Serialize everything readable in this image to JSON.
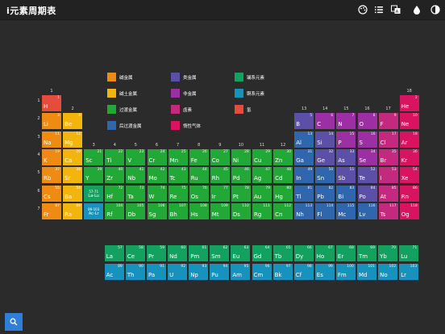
{
  "app": {
    "title": "i元素周期表"
  },
  "toolbar": {
    "icons": [
      "palette-icon",
      "list-icon",
      "translate-icon",
      "drop-icon",
      "contrast-icon"
    ]
  },
  "colors": {
    "alkali": "#ef8b13",
    "alkaline": "#f3b40d",
    "transition": "#22a836",
    "post": "#2f66ad",
    "metalloid": "#5b4fa8",
    "nonmetal": "#9b2fa3",
    "halogen": "#c2297f",
    "noble": "#d81460",
    "lanthanide": "#12a15f",
    "actinide": "#1692bc",
    "hydrogen": "#e74b3c"
  },
  "legend": [
    {
      "label": "碱金属",
      "cat": "alkali"
    },
    {
      "label": "碱土金属",
      "cat": "alkaline"
    },
    {
      "label": "过渡金属",
      "cat": "transition"
    },
    {
      "label": "后过渡金属",
      "cat": "post"
    },
    {
      "label": "类金属",
      "cat": "metalloid"
    },
    {
      "label": "非金属",
      "cat": "nonmetal"
    },
    {
      "label": "卤素",
      "cat": "halogen"
    },
    {
      "label": "惰性气体",
      "cat": "noble"
    },
    {
      "label": "镧系元素",
      "cat": "lanthanide"
    },
    {
      "label": "锕系元素",
      "cat": "actinide"
    },
    {
      "label": "氢",
      "cat": "hydrogen"
    }
  ],
  "groups": [
    "1",
    "2",
    "3",
    "4",
    "5",
    "6",
    "7",
    "8",
    "9",
    "10",
    "11",
    "12",
    "13",
    "14",
    "15",
    "16",
    "17",
    "18"
  ],
  "periods": [
    "1",
    "2",
    "3",
    "4",
    "5",
    "6",
    "7"
  ],
  "placeholders": [
    {
      "range": "57-71",
      "label": "La-Lu"
    },
    {
      "range": "89-103",
      "label": "Ac-Lr"
    }
  ],
  "elements": [
    {
      "n": 1,
      "s": "H",
      "g": 1,
      "p": 1,
      "c": "hydrogen"
    },
    {
      "n": 2,
      "s": "He",
      "g": 18,
      "p": 1,
      "c": "noble"
    },
    {
      "n": 3,
      "s": "Li",
      "g": 1,
      "p": 2,
      "c": "alkali"
    },
    {
      "n": 4,
      "s": "Be",
      "g": 2,
      "p": 2,
      "c": "alkaline"
    },
    {
      "n": 5,
      "s": "B",
      "g": 13,
      "p": 2,
      "c": "metalloid"
    },
    {
      "n": 6,
      "s": "C",
      "g": 14,
      "p": 2,
      "c": "nonmetal"
    },
    {
      "n": 7,
      "s": "N",
      "g": 15,
      "p": 2,
      "c": "nonmetal"
    },
    {
      "n": 8,
      "s": "O",
      "g": 16,
      "p": 2,
      "c": "nonmetal"
    },
    {
      "n": 9,
      "s": "F",
      "g": 17,
      "p": 2,
      "c": "halogen"
    },
    {
      "n": 10,
      "s": "Ne",
      "g": 18,
      "p": 2,
      "c": "noble"
    },
    {
      "n": 11,
      "s": "Na",
      "g": 1,
      "p": 3,
      "c": "alkali"
    },
    {
      "n": 12,
      "s": "Mg",
      "g": 2,
      "p": 3,
      "c": "alkaline"
    },
    {
      "n": 13,
      "s": "Al",
      "g": 13,
      "p": 3,
      "c": "post"
    },
    {
      "n": 14,
      "s": "Si",
      "g": 14,
      "p": 3,
      "c": "metalloid"
    },
    {
      "n": 15,
      "s": "P",
      "g": 15,
      "p": 3,
      "c": "nonmetal"
    },
    {
      "n": 16,
      "s": "S",
      "g": 16,
      "p": 3,
      "c": "nonmetal"
    },
    {
      "n": 17,
      "s": "Cl",
      "g": 17,
      "p": 3,
      "c": "halogen"
    },
    {
      "n": 18,
      "s": "Ar",
      "g": 18,
      "p": 3,
      "c": "noble"
    },
    {
      "n": 19,
      "s": "K",
      "g": 1,
      "p": 4,
      "c": "alkali"
    },
    {
      "n": 20,
      "s": "Ca",
      "g": 2,
      "p": 4,
      "c": "alkaline"
    },
    {
      "n": 21,
      "s": "Sc",
      "g": 3,
      "p": 4,
      "c": "transition"
    },
    {
      "n": 22,
      "s": "Ti",
      "g": 4,
      "p": 4,
      "c": "transition"
    },
    {
      "n": 23,
      "s": "V",
      "g": 5,
      "p": 4,
      "c": "transition"
    },
    {
      "n": 24,
      "s": "Cr",
      "g": 6,
      "p": 4,
      "c": "transition"
    },
    {
      "n": 25,
      "s": "Mn",
      "g": 7,
      "p": 4,
      "c": "transition"
    },
    {
      "n": 26,
      "s": "Fe",
      "g": 8,
      "p": 4,
      "c": "transition"
    },
    {
      "n": 27,
      "s": "Co",
      "g": 9,
      "p": 4,
      "c": "transition"
    },
    {
      "n": 28,
      "s": "Ni",
      "g": 10,
      "p": 4,
      "c": "transition"
    },
    {
      "n": 29,
      "s": "Cu",
      "g": 11,
      "p": 4,
      "c": "transition"
    },
    {
      "n": 30,
      "s": "Zn",
      "g": 12,
      "p": 4,
      "c": "transition"
    },
    {
      "n": 31,
      "s": "Ga",
      "g": 13,
      "p": 4,
      "c": "post"
    },
    {
      "n": 32,
      "s": "Ge",
      "g": 14,
      "p": 4,
      "c": "metalloid"
    },
    {
      "n": 33,
      "s": "As",
      "g": 15,
      "p": 4,
      "c": "metalloid"
    },
    {
      "n": 34,
      "s": "Se",
      "g": 16,
      "p": 4,
      "c": "nonmetal"
    },
    {
      "n": 35,
      "s": "Br",
      "g": 17,
      "p": 4,
      "c": "halogen"
    },
    {
      "n": 36,
      "s": "Kr",
      "g": 18,
      "p": 4,
      "c": "noble"
    },
    {
      "n": 37,
      "s": "Rb",
      "g": 1,
      "p": 5,
      "c": "alkali"
    },
    {
      "n": 38,
      "s": "Sr",
      "g": 2,
      "p": 5,
      "c": "alkaline"
    },
    {
      "n": 39,
      "s": "Y",
      "g": 3,
      "p": 5,
      "c": "transition"
    },
    {
      "n": 40,
      "s": "Zr",
      "g": 4,
      "p": 5,
      "c": "transition"
    },
    {
      "n": 41,
      "s": "Nb",
      "g": 5,
      "p": 5,
      "c": "transition"
    },
    {
      "n": 42,
      "s": "Mo",
      "g": 6,
      "p": 5,
      "c": "transition"
    },
    {
      "n": 43,
      "s": "Tc",
      "g": 7,
      "p": 5,
      "c": "transition"
    },
    {
      "n": 44,
      "s": "Ru",
      "g": 8,
      "p": 5,
      "c": "transition"
    },
    {
      "n": 45,
      "s": "Rh",
      "g": 9,
      "p": 5,
      "c": "transition"
    },
    {
      "n": 46,
      "s": "Pd",
      "g": 10,
      "p": 5,
      "c": "transition"
    },
    {
      "n": 47,
      "s": "Ag",
      "g": 11,
      "p": 5,
      "c": "transition"
    },
    {
      "n": 48,
      "s": "Cd",
      "g": 12,
      "p": 5,
      "c": "transition"
    },
    {
      "n": 49,
      "s": "In",
      "g": 13,
      "p": 5,
      "c": "post"
    },
    {
      "n": 50,
      "s": "Sn",
      "g": 14,
      "p": 5,
      "c": "post"
    },
    {
      "n": 51,
      "s": "Sb",
      "g": 15,
      "p": 5,
      "c": "metalloid"
    },
    {
      "n": 52,
      "s": "Te",
      "g": 16,
      "p": 5,
      "c": "metalloid"
    },
    {
      "n": 53,
      "s": "I",
      "g": 17,
      "p": 5,
      "c": "halogen"
    },
    {
      "n": 54,
      "s": "Xe",
      "g": 18,
      "p": 5,
      "c": "noble"
    },
    {
      "n": 55,
      "s": "Cs",
      "g": 1,
      "p": 6,
      "c": "alkali"
    },
    {
      "n": 56,
      "s": "Ba",
      "g": 2,
      "p": 6,
      "c": "alkaline"
    },
    {
      "n": 72,
      "s": "Hf",
      "g": 4,
      "p": 6,
      "c": "transition"
    },
    {
      "n": 73,
      "s": "Ta",
      "g": 5,
      "p": 6,
      "c": "transition"
    },
    {
      "n": 74,
      "s": "W",
      "g": 6,
      "p": 6,
      "c": "transition"
    },
    {
      "n": 75,
      "s": "Re",
      "g": 7,
      "p": 6,
      "c": "transition"
    },
    {
      "n": 76,
      "s": "Os",
      "g": 8,
      "p": 6,
      "c": "transition"
    },
    {
      "n": 77,
      "s": "Ir",
      "g": 9,
      "p": 6,
      "c": "transition"
    },
    {
      "n": 78,
      "s": "Pt",
      "g": 10,
      "p": 6,
      "c": "transition"
    },
    {
      "n": 79,
      "s": "Au",
      "g": 11,
      "p": 6,
      "c": "transition"
    },
    {
      "n": 80,
      "s": "Hg",
      "g": 12,
      "p": 6,
      "c": "transition"
    },
    {
      "n": 81,
      "s": "Tl",
      "g": 13,
      "p": 6,
      "c": "post"
    },
    {
      "n": 82,
      "s": "Pb",
      "g": 14,
      "p": 6,
      "c": "post"
    },
    {
      "n": 83,
      "s": "Bi",
      "g": 15,
      "p": 6,
      "c": "post"
    },
    {
      "n": 84,
      "s": "Po",
      "g": 16,
      "p": 6,
      "c": "metalloid"
    },
    {
      "n": 85,
      "s": "At",
      "g": 17,
      "p": 6,
      "c": "halogen"
    },
    {
      "n": 86,
      "s": "Rn",
      "g": 18,
      "p": 6,
      "c": "noble"
    },
    {
      "n": 87,
      "s": "Fr",
      "g": 1,
      "p": 7,
      "c": "alkali"
    },
    {
      "n": 88,
      "s": "Ra",
      "g": 2,
      "p": 7,
      "c": "alkaline"
    },
    {
      "n": 104,
      "s": "Rf",
      "g": 4,
      "p": 7,
      "c": "transition"
    },
    {
      "n": 105,
      "s": "Db",
      "g": 5,
      "p": 7,
      "c": "transition"
    },
    {
      "n": 106,
      "s": "Sg",
      "g": 6,
      "p": 7,
      "c": "transition"
    },
    {
      "n": 107,
      "s": "Bh",
      "g": 7,
      "p": 7,
      "c": "transition"
    },
    {
      "n": 108,
      "s": "Hs",
      "g": 8,
      "p": 7,
      "c": "transition"
    },
    {
      "n": 109,
      "s": "Mt",
      "g": 9,
      "p": 7,
      "c": "transition"
    },
    {
      "n": 110,
      "s": "Ds",
      "g": 10,
      "p": 7,
      "c": "transition"
    },
    {
      "n": 111,
      "s": "Rg",
      "g": 11,
      "p": 7,
      "c": "transition"
    },
    {
      "n": 112,
      "s": "Cn",
      "g": 12,
      "p": 7,
      "c": "transition"
    },
    {
      "n": 113,
      "s": "Nh",
      "g": 13,
      "p": 7,
      "c": "post"
    },
    {
      "n": 114,
      "s": "Fl",
      "g": 14,
      "p": 7,
      "c": "post"
    },
    {
      "n": 115,
      "s": "Mc",
      "g": 15,
      "p": 7,
      "c": "post"
    },
    {
      "n": 116,
      "s": "Lv",
      "g": 16,
      "p": 7,
      "c": "post"
    },
    {
      "n": 117,
      "s": "Ts",
      "g": 17,
      "p": 7,
      "c": "halogen"
    },
    {
      "n": 118,
      "s": "Og",
      "g": 18,
      "p": 7,
      "c": "noble"
    }
  ],
  "lanthanides": [
    {
      "n": 57,
      "s": "La"
    },
    {
      "n": 58,
      "s": "Ce"
    },
    {
      "n": 59,
      "s": "Pr"
    },
    {
      "n": 60,
      "s": "Nd"
    },
    {
      "n": 61,
      "s": "Pm"
    },
    {
      "n": 62,
      "s": "Sm"
    },
    {
      "n": 63,
      "s": "Eu"
    },
    {
      "n": 64,
      "s": "Gd"
    },
    {
      "n": 65,
      "s": "Tb"
    },
    {
      "n": 66,
      "s": "Dy"
    },
    {
      "n": 67,
      "s": "Ho"
    },
    {
      "n": 68,
      "s": "Er"
    },
    {
      "n": 69,
      "s": "Tm"
    },
    {
      "n": 70,
      "s": "Yb"
    },
    {
      "n": 71,
      "s": "Lu"
    }
  ],
  "actinides": [
    {
      "n": 89,
      "s": "Ac"
    },
    {
      "n": 90,
      "s": "Th"
    },
    {
      "n": 91,
      "s": "Pa"
    },
    {
      "n": 92,
      "s": "U"
    },
    {
      "n": 93,
      "s": "Np"
    },
    {
      "n": 94,
      "s": "Pu"
    },
    {
      "n": 95,
      "s": "Am"
    },
    {
      "n": 96,
      "s": "Cm"
    },
    {
      "n": 97,
      "s": "Bk"
    },
    {
      "n": 98,
      "s": "Cf"
    },
    {
      "n": 99,
      "s": "Es"
    },
    {
      "n": 100,
      "s": "Fm"
    },
    {
      "n": 101,
      "s": "Md"
    },
    {
      "n": 102,
      "s": "No"
    },
    {
      "n": 103,
      "s": "Lr"
    }
  ]
}
